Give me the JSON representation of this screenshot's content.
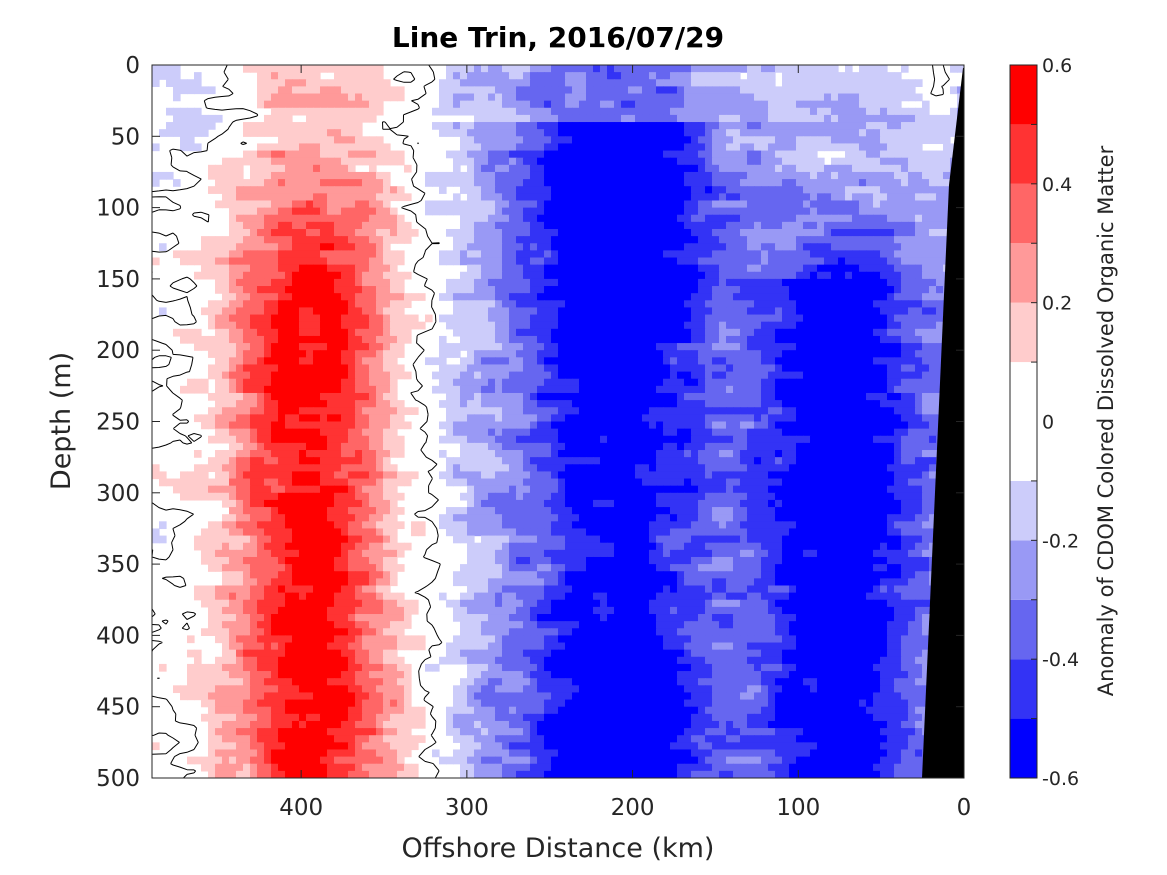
{
  "chart_data": {
    "type": "heatmap",
    "title": "Line Trin, 2016/07/29",
    "xlabel": "Offshore Distance (km)",
    "ylabel": "Depth (m)",
    "xlim": [
      490,
      0
    ],
    "ylim": [
      500,
      0
    ],
    "x_reversed": true,
    "y_reversed": true,
    "xticks": [
      400,
      300,
      200,
      100,
      0
    ],
    "xtick_labels": [
      "400",
      "300",
      "200",
      "100",
      "0"
    ],
    "yticks": [
      0,
      50,
      100,
      150,
      200,
      250,
      300,
      350,
      400,
      450,
      500
    ],
    "ytick_labels": [
      "0",
      "50",
      "100",
      "150",
      "200",
      "250",
      "300",
      "350",
      "400",
      "450",
      "500"
    ],
    "colorbar": {
      "label": "Anomaly of CDOM Colored Dissolved Organic Matter",
      "range": [
        -0.6,
        0.6
      ],
      "ticks": [
        0.6,
        0.4,
        0.2,
        0,
        -0.2,
        -0.4,
        -0.6
      ],
      "tick_labels": [
        "0.6",
        "0.4",
        "0.2",
        "0",
        "-0.2",
        "-0.4",
        "-0.6"
      ],
      "levels": [
        -0.6,
        -0.5,
        -0.4,
        -0.3,
        -0.2,
        -0.1,
        0.1,
        0.2,
        0.3,
        0.4,
        0.5,
        0.6
      ],
      "colors": [
        "#0000ff",
        "#3333f5",
        "#6666f0",
        "#9999f5",
        "#ccccfa",
        "#ffffff",
        "#ffcccc",
        "#ff9999",
        "#ff6666",
        "#ff3333",
        "#ff0000"
      ]
    },
    "bottom_mask_color": "#000000",
    "features": [
      {
        "name": "positive core",
        "x_range": [
          450,
          340
        ],
        "depth_range": [
          0,
          500
        ],
        "peak_value": 0.55
      },
      {
        "name": "negative core",
        "x_range": [
          250,
          170
        ],
        "depth_range": [
          60,
          500
        ],
        "peak_value": -0.55
      },
      {
        "name": "negative band",
        "x_range": [
          120,
          30
        ],
        "depth_range": [
          150,
          500
        ],
        "peak_value": -0.45
      }
    ]
  }
}
